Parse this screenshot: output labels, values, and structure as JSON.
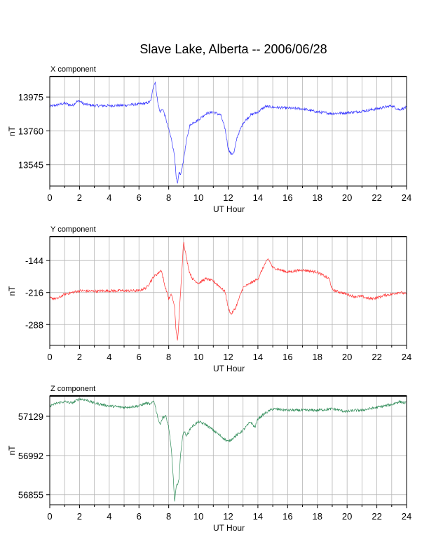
{
  "title": "Slave Lake, Alberta -- 2006/06/28",
  "chart_data": [
    {
      "type": "line",
      "panel_title": "X component",
      "xlabel": "UT Hour",
      "ylabel": "nT",
      "xlim": [
        0,
        24
      ],
      "ylim": [
        13410,
        14105
      ],
      "xticks": [
        0,
        2,
        4,
        6,
        8,
        10,
        12,
        14,
        16,
        18,
        20,
        22,
        24
      ],
      "yticks": [
        13545,
        13760,
        13975
      ],
      "grid": true,
      "color": "#3333ff",
      "series": [
        {
          "x": [
            0,
            0.5,
            1.0,
            1.5,
            1.8,
            2.0,
            2.3,
            3.0,
            4.0,
            5.0,
            6.0,
            6.5,
            6.8,
            7.0,
            7.1,
            7.2,
            7.4,
            7.6,
            7.8,
            8.0,
            8.2,
            8.4,
            8.5,
            8.6,
            8.7,
            8.8,
            9.0,
            9.2,
            9.4,
            9.6,
            10.0,
            10.5,
            11.0,
            11.5,
            11.8,
            12.0,
            12.2,
            12.4,
            12.6,
            13.0,
            13.5,
            14.0,
            14.5,
            15.0,
            16.0,
            17.0,
            18.0,
            19.0,
            20.0,
            21.0,
            22.0,
            22.5,
            23.0,
            23.5,
            24.0
          ],
          "y": [
            13915,
            13925,
            13935,
            13920,
            13945,
            13950,
            13930,
            13920,
            13920,
            13922,
            13930,
            13935,
            13950,
            14055,
            14070,
            13980,
            13880,
            13900,
            13840,
            13770,
            13700,
            13600,
            13460,
            13420,
            13500,
            13480,
            13580,
            13700,
            13790,
            13810,
            13830,
            13870,
            13880,
            13860,
            13770,
            13650,
            13610,
            13625,
            13720,
            13810,
            13860,
            13880,
            13915,
            13910,
            13905,
            13900,
            13880,
            13870,
            13875,
            13885,
            13900,
            13910,
            13920,
            13895,
            13910
          ]
        }
      ]
    },
    {
      "type": "line",
      "panel_title": "Y component",
      "xlabel": "UT Hour",
      "ylabel": "nT",
      "xlim": [
        0,
        24
      ],
      "ylim": [
        -335,
        -90
      ],
      "xticks": [
        0,
        2,
        4,
        6,
        8,
        10,
        12,
        14,
        16,
        18,
        20,
        22,
        24
      ],
      "yticks": [
        -288,
        -216,
        -144
      ],
      "grid": true,
      "color": "#ff3333",
      "series": [
        {
          "x": [
            0,
            0.5,
            1.0,
            2.0,
            3.0,
            4.0,
            5.0,
            6.0,
            6.5,
            6.8,
            7.0,
            7.2,
            7.5,
            7.7,
            8.0,
            8.2,
            8.4,
            8.5,
            8.6,
            8.8,
            9.0,
            9.2,
            9.4,
            9.6,
            10.0,
            10.5,
            11.0,
            11.5,
            11.8,
            12.0,
            12.2,
            12.5,
            13.0,
            13.5,
            14.0,
            14.5,
            14.7,
            15.0,
            16.0,
            17.0,
            18.0,
            18.5,
            18.8,
            19.0,
            19.5,
            20.0,
            20.5,
            21.0,
            21.5,
            22.0,
            22.5,
            23.0,
            23.5,
            24.0
          ],
          "y": [
            -228,
            -230,
            -220,
            -212,
            -213,
            -212,
            -212,
            -212,
            -205,
            -190,
            -180,
            -175,
            -165,
            -195,
            -230,
            -220,
            -250,
            -305,
            -325,
            -215,
            -100,
            -140,
            -170,
            -185,
            -195,
            -185,
            -190,
            -205,
            -215,
            -250,
            -265,
            -250,
            -205,
            -195,
            -185,
            -150,
            -140,
            -160,
            -170,
            -165,
            -170,
            -180,
            -185,
            -210,
            -215,
            -220,
            -225,
            -225,
            -230,
            -228,
            -222,
            -220,
            -215,
            -220
          ]
        }
      ]
    },
    {
      "type": "line",
      "panel_title": "Z component",
      "xlabel": "UT Hour",
      "ylabel": "nT",
      "xlim": [
        0,
        24
      ],
      "ylim": [
        56820,
        57200
      ],
      "xticks": [
        0,
        2,
        4,
        6,
        8,
        10,
        12,
        14,
        16,
        18,
        20,
        22,
        24
      ],
      "yticks": [
        56855,
        56992,
        57129
      ],
      "grid": true,
      "color": "#2e8b57",
      "series": [
        {
          "x": [
            0,
            0.5,
            1.0,
            1.5,
            2.0,
            2.5,
            3.0,
            4.0,
            5.0,
            6.0,
            6.5,
            6.8,
            7.0,
            7.2,
            7.4,
            7.6,
            7.8,
            8.0,
            8.2,
            8.3,
            8.4,
            8.5,
            8.7,
            8.8,
            9.0,
            9.2,
            9.5,
            10.0,
            10.5,
            11.0,
            11.5,
            12.0,
            12.5,
            13.0,
            13.5,
            13.8,
            14.0,
            14.5,
            15.0,
            16.0,
            17.0,
            18.0,
            19.0,
            20.0,
            20.5,
            21.0,
            22.0,
            22.5,
            23.0,
            23.5,
            24.0
          ],
          "y": [
            57165,
            57175,
            57180,
            57175,
            57190,
            57185,
            57175,
            57165,
            57160,
            57165,
            57175,
            57170,
            57185,
            57140,
            57100,
            57125,
            57130,
            57090,
            57000,
            56920,
            56830,
            56880,
            56910,
            57000,
            57080,
            57060,
            57090,
            57110,
            57100,
            57080,
            57060,
            57040,
            57060,
            57080,
            57110,
            57090,
            57120,
            57140,
            57155,
            57150,
            57150,
            57150,
            57155,
            57145,
            57150,
            57150,
            57160,
            57165,
            57170,
            57180,
            57175
          ]
        }
      ]
    }
  ]
}
